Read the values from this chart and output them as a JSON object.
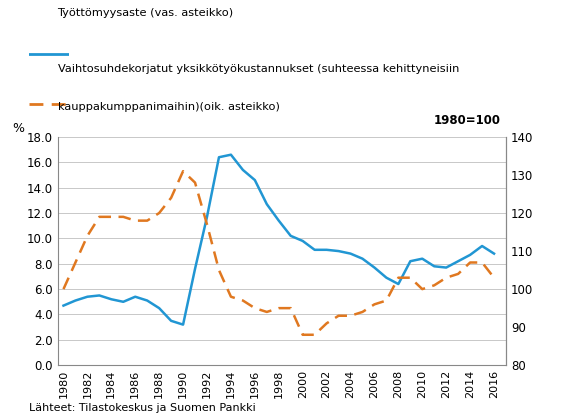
{
  "years": [
    1980,
    1981,
    1982,
    1983,
    1984,
    1985,
    1986,
    1987,
    1988,
    1989,
    1990,
    1991,
    1992,
    1993,
    1994,
    1995,
    1996,
    1997,
    1998,
    1999,
    2000,
    2001,
    2002,
    2003,
    2004,
    2005,
    2006,
    2007,
    2008,
    2009,
    2010,
    2011,
    2012,
    2013,
    2014,
    2015,
    2016
  ],
  "unemployment": [
    4.7,
    5.1,
    5.4,
    5.5,
    5.2,
    5.0,
    5.4,
    5.1,
    4.5,
    3.5,
    3.2,
    7.6,
    11.7,
    16.4,
    16.6,
    15.4,
    14.6,
    12.7,
    11.4,
    10.2,
    9.8,
    9.1,
    9.1,
    9.0,
    8.8,
    8.4,
    7.7,
    6.9,
    6.4,
    8.2,
    8.4,
    7.8,
    7.7,
    8.2,
    8.7,
    9.4,
    8.8
  ],
  "ulc": [
    100,
    107,
    114,
    119,
    119,
    119,
    118,
    118,
    120,
    124,
    131,
    128,
    117,
    105,
    98,
    97,
    95,
    94,
    95,
    95,
    88,
    88,
    91,
    93,
    93,
    94,
    96,
    97,
    103,
    103,
    100,
    101,
    103,
    104,
    107,
    107,
    103
  ],
  "unemp_color": "#2196d3",
  "ulc_color": "#e07820",
  "unemp_label": "Työttömyysaste (vas. asteikko)",
  "ulc_label_line1": "Vaihtosuhdekorjatut yksikkötyökustannukset (suhteessa kehittyneisiin",
  "ulc_label_line2": "kauppakumppanimaihin)(oik. asteikko)",
  "ylabel_left": "%",
  "ylabel_right": "1980=100",
  "ylim_left": [
    0.0,
    18.0
  ],
  "ylim_right": [
    80,
    140
  ],
  "yticks_left": [
    0.0,
    2.0,
    4.0,
    6.0,
    8.0,
    10.0,
    12.0,
    14.0,
    16.0,
    18.0
  ],
  "yticks_right": [
    80,
    90,
    100,
    110,
    120,
    130,
    140
  ],
  "xticks": [
    1980,
    1982,
    1984,
    1986,
    1988,
    1990,
    1992,
    1994,
    1996,
    1998,
    2000,
    2002,
    2004,
    2006,
    2008,
    2010,
    2012,
    2014,
    2016
  ],
  "xlim": [
    1979.5,
    2017.0
  ],
  "source_text": "Lähteet: Tilastokeskus ja Suomen Pankki",
  "background_color": "#ffffff",
  "grid_color": "#c8c8c8"
}
